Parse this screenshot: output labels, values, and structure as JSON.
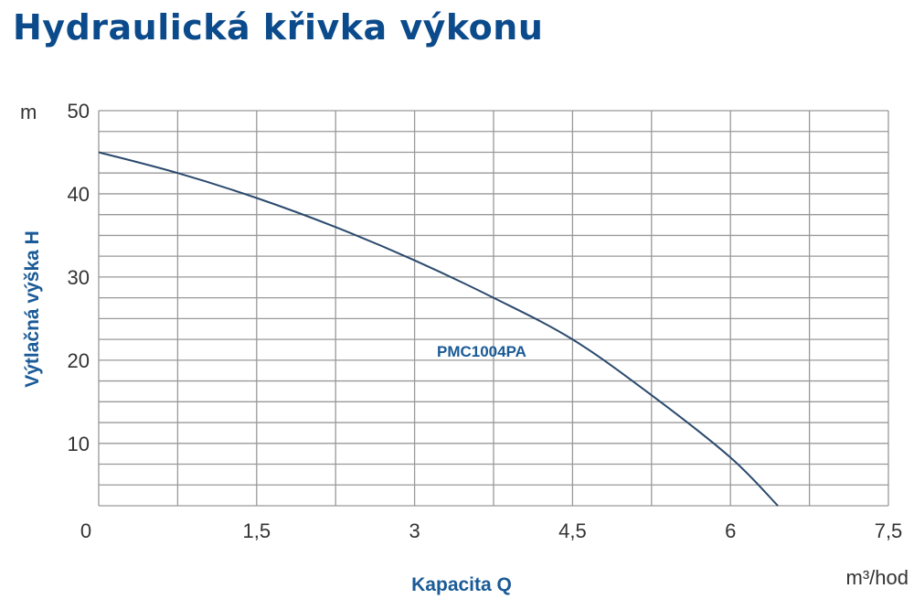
{
  "chart_data": {
    "type": "line",
    "title": "Hydraulická křivka výkonu",
    "xlabel": "Kapacita Q",
    "xunit": "m³/hod",
    "ylabel": "Výtlačná výška H",
    "yunit": "m",
    "xlim": [
      0,
      7.5
    ],
    "ylim": [
      2.5,
      50
    ],
    "x_ticks": [
      {
        "v": 0,
        "label": "0"
      },
      {
        "v": 1.5,
        "label": "1,5"
      },
      {
        "v": 3,
        "label": "3"
      },
      {
        "v": 4.5,
        "label": "4,5"
      },
      {
        "v": 6,
        "label": "6"
      },
      {
        "v": 7.5,
        "label": "7,5"
      }
    ],
    "y_ticks": [
      {
        "v": 10,
        "label": "10"
      },
      {
        "v": 20,
        "label": "20"
      },
      {
        "v": 30,
        "label": "30"
      },
      {
        "v": 40,
        "label": "40"
      },
      {
        "v": 50,
        "label": "50"
      }
    ],
    "x_grid_step": 0.75,
    "y_grid_step": 2.5,
    "grid": true,
    "series": [
      {
        "name": "PMC1004PA",
        "x": [
          0,
          0.75,
          1.5,
          2.25,
          3,
          3.75,
          4.5,
          5.25,
          6,
          6.45
        ],
        "y": [
          45,
          42.5,
          39.5,
          36,
          32,
          27.5,
          22.5,
          15.8,
          8.3,
          2.5
        ]
      }
    ],
    "colors": {
      "title": "#0b4a8b",
      "line": "#2b4a6e",
      "grid": "#999999",
      "label": "#1a5a96"
    }
  }
}
